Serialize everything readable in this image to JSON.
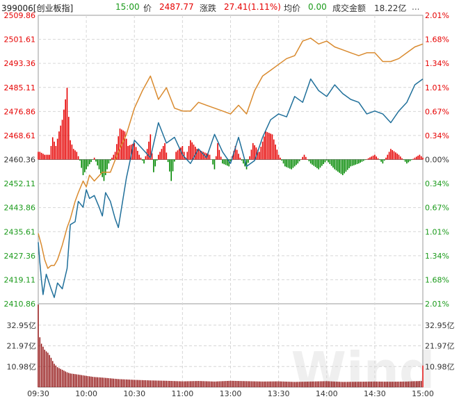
{
  "header": {
    "code_label": "399006[创业板指]",
    "time": "15:00",
    "price_label": "价",
    "price": "2487.77",
    "change_label": "涨跌",
    "change": "27.41(1.11%)",
    "avg_label": "均价",
    "avg": "0.00",
    "amount_label": "成交金额",
    "amount": "18.22亿",
    "more": "..."
  },
  "colors": {
    "up": "#e60000",
    "down": "#008800",
    "price_line": "#1f6f9a",
    "avg_line": "#d98a2e",
    "volume": "#8a0000",
    "grid": "#d6d6d6",
    "axis_text": "#333333"
  },
  "chart_data": {
    "type": "line",
    "title": "",
    "x_ticks": [
      "09:30",
      "10:00",
      "10:30",
      "11:00",
      "13:00",
      "13:30",
      "14:00",
      "14:30",
      "15:00"
    ],
    "y_price_ticks": [
      "2509.86",
      "2501.61",
      "2493.36",
      "2485.11",
      "2476.86",
      "2468.61",
      "2460.36",
      "2452.11",
      "2443.86",
      "2435.61",
      "2427.36",
      "2419.11",
      "2410.86"
    ],
    "y_pct_ticks": [
      "2.01%",
      "1.68%",
      "1.34%",
      "1.01%",
      "0.67%",
      "0.34%",
      "0.00%",
      "0.34%",
      "0.67%",
      "1.01%",
      "1.34%",
      "1.68%",
      "2.01%"
    ],
    "y_volume_ticks": [
      "32.95亿",
      "21.97亿",
      "10.98亿"
    ],
    "prev_close": 2460.36,
    "ylim": [
      2410.86,
      2509.86
    ],
    "volume_max": 43.93,
    "series": [
      {
        "key": "price",
        "x": [
          0,
          1,
          2,
          3,
          5,
          8,
          10,
          12,
          15,
          18,
          20,
          23,
          25,
          28,
          30,
          32,
          35,
          38,
          40,
          42,
          45,
          48,
          50,
          55,
          60,
          65,
          70,
          75,
          80,
          85,
          90,
          95,
          100,
          105,
          110,
          115,
          120,
          125,
          130,
          135,
          140,
          145,
          150,
          155,
          160,
          165,
          170,
          175,
          180,
          185,
          190,
          195,
          200,
          205,
          210,
          215,
          220,
          225,
          230,
          235,
          240
        ],
        "values": [
          2432,
          2425,
          2419,
          2414,
          2421,
          2416,
          2413,
          2418,
          2416,
          2423,
          2438,
          2439,
          2446,
          2444,
          2450,
          2447,
          2448,
          2444,
          2441,
          2449,
          2446,
          2440,
          2437,
          2454,
          2467,
          2464,
          2461,
          2473,
          2466,
          2468,
          2462,
          2459,
          2464,
          2461,
          2469,
          2463,
          2459,
          2468,
          2458,
          2460,
          2468,
          2474,
          2476,
          2475,
          2482,
          2480,
          2488,
          2484,
          2482,
          2486,
          2483,
          2481,
          2480,
          2476,
          2477,
          2476,
          2473,
          2477,
          2480,
          2486,
          2488
        ]
      },
      {
        "key": "avg",
        "x": [
          0,
          2,
          4,
          6,
          8,
          10,
          12,
          15,
          18,
          20,
          23,
          25,
          28,
          30,
          32,
          35,
          40,
          45,
          50,
          55,
          60,
          65,
          70,
          75,
          80,
          85,
          90,
          95,
          100,
          105,
          110,
          115,
          120,
          125,
          130,
          135,
          140,
          145,
          150,
          155,
          160,
          165,
          170,
          175,
          180,
          185,
          190,
          195,
          200,
          205,
          210,
          215,
          220,
          225,
          230,
          235,
          240
        ],
        "values": [
          2435,
          2431,
          2426,
          2423,
          2424,
          2424,
          2426,
          2431,
          2437,
          2440,
          2446,
          2449,
          2453,
          2451,
          2455,
          2453,
          2456,
          2456,
          2463,
          2469,
          2478,
          2484,
          2489,
          2481,
          2485,
          2478,
          2477,
          2477,
          2480,
          2479,
          2478,
          2477,
          2476,
          2479,
          2476,
          2484,
          2489,
          2491,
          2493,
          2495,
          2496,
          2501,
          2502,
          2500,
          2501,
          2499,
          2498,
          2497,
          2496,
          2497,
          2497,
          2494,
          2494,
          2495,
          2497,
          2499,
          2500
        ]
      },
      {
        "key": "momentum",
        "x": [
          1,
          4,
          7,
          9,
          11,
          13,
          15,
          17,
          18,
          19,
          20,
          22,
          24,
          26,
          28,
          31,
          35,
          38,
          41,
          44,
          48,
          51,
          54,
          56,
          60,
          63,
          66,
          70,
          72,
          75,
          79,
          83,
          86,
          90,
          92,
          95,
          99,
          103,
          107,
          110,
          112,
          115,
          119,
          123,
          126,
          130,
          134,
          138,
          142,
          146,
          150,
          154,
          158,
          162,
          166,
          170,
          175,
          180,
          185,
          190,
          195,
          200,
          210,
          215,
          220,
          225,
          230,
          235,
          238,
          240
        ],
        "values": [
          2463,
          2462,
          2462,
          2468,
          2465,
          2470,
          2474,
          2481,
          2485,
          2475,
          2467,
          2464,
          2463,
          2460,
          2455,
          2458,
          2461,
          2457,
          2453,
          2459,
          2463,
          2471,
          2470,
          2465,
          2466,
          2462,
          2459,
          2469,
          2456,
          2462,
          2466,
          2453,
          2463,
          2465,
          2461,
          2467,
          2464,
          2463,
          2462,
          2457,
          2466,
          2459,
          2458,
          2465,
          2461,
          2457,
          2466,
          2463,
          2470,
          2469,
          2462,
          2458,
          2457,
          2459,
          2462,
          2459,
          2457,
          2460,
          2457,
          2455,
          2458,
          2459,
          2462,
          2459,
          2464,
          2462,
          2459,
          2461,
          2462,
          2461
        ]
      },
      {
        "key": "volume",
        "x": [
          0,
          1,
          2,
          3,
          4,
          5,
          6,
          7,
          8,
          9,
          10,
          12,
          14,
          16,
          18,
          20,
          25,
          30,
          35,
          40,
          50,
          60,
          70,
          80,
          90,
          100,
          110,
          120,
          130,
          140,
          150,
          160,
          170,
          180,
          190,
          200,
          210,
          220,
          230,
          235,
          239,
          240
        ],
        "values": [
          43.9,
          26.5,
          23.1,
          21.5,
          19.9,
          19.0,
          18.3,
          17.1,
          15.6,
          13.9,
          12.4,
          10.6,
          9.7,
          8.8,
          7.9,
          7.3,
          6.7,
          6.0,
          5.4,
          5.1,
          4.3,
          3.9,
          3.6,
          3.4,
          3.1,
          3.3,
          3.0,
          3.4,
          3.2,
          3.0,
          3.1,
          2.8,
          3.0,
          3.2,
          2.8,
          2.9,
          3.0,
          2.9,
          3.0,
          3.2,
          3.3,
          11.5
        ]
      }
    ]
  },
  "watermark": "Wind"
}
